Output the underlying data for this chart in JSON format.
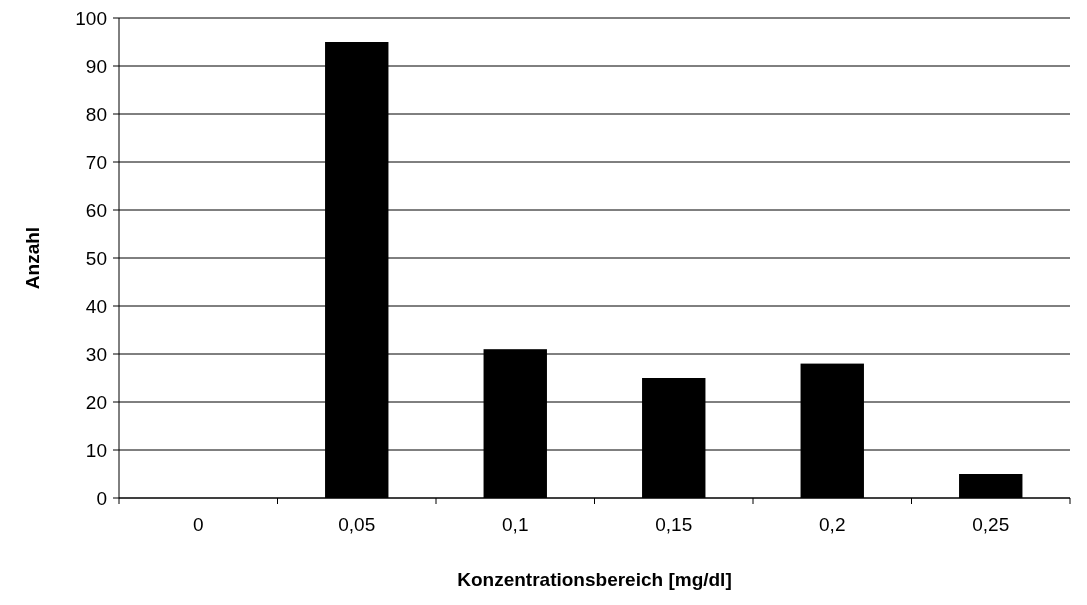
{
  "chart_data": {
    "type": "bar",
    "xlabel": "Konzentrationsbereich [mg/dl]",
    "ylabel": "Anzahl",
    "categories": [
      "0",
      "0,05",
      "0,1",
      "0,15",
      "0,2",
      "0,25"
    ],
    "values": [
      0,
      95,
      31,
      25,
      28,
      5
    ],
    "color": "#000000",
    "ylim": [
      0,
      100
    ],
    "yticks": [
      0,
      10,
      20,
      30,
      40,
      50,
      60,
      70,
      80,
      90,
      100
    ],
    "grid": "y"
  }
}
